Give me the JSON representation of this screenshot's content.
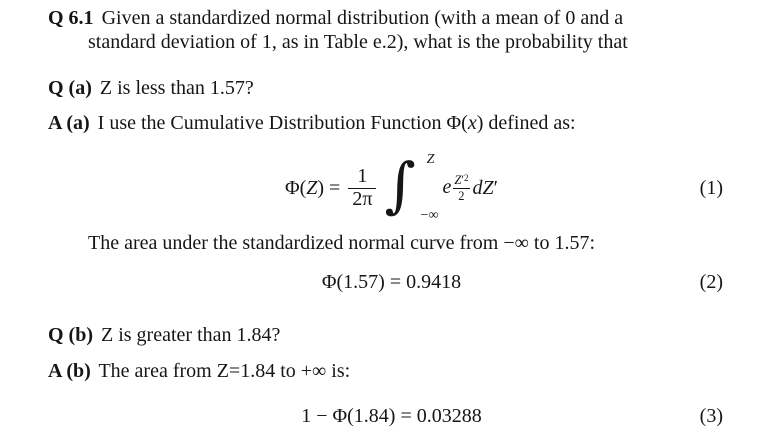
{
  "doc": {
    "background": "#ffffff",
    "ink": "#161616"
  },
  "paragraphs": {
    "q61": {
      "label": "Q 6.1",
      "line1": "Given a standardized normal distribution (with a mean of 0 and a",
      "line2": "standard deviation of 1, as in Table e.2), what is the probability that"
    },
    "qa": {
      "label": "Q (a)",
      "text": "Z is less than 1.57?"
    },
    "aa": {
      "label": "A (a)",
      "before": "I use the Cumulative Distribution Function",
      "phi_open": "Φ(",
      "var": "x",
      "after": ") defined as:"
    },
    "area": {
      "text": "The area under the standardized normal curve from −∞ to 1.57:"
    },
    "qb": {
      "label": "Q (b)",
      "text": "Z is greater than 1.84?"
    },
    "ab": {
      "label": "A (b)",
      "text": "The area from Z=1.84 to +∞ is:"
    }
  },
  "equations": {
    "eq1": {
      "lhs_open": "Φ(",
      "lhs_var": "Z",
      "lhs_close": ") =",
      "frac_num": "1",
      "frac_den": "2π",
      "int_sign": "∫",
      "int_upper": "Z",
      "int_lower": "−∞",
      "e": "e",
      "exp_num_var": "Z",
      "exp_num_prime": "′",
      "exp_num_sup": "2",
      "exp_den": "2",
      "d_var": "dZ",
      "d_prime": "′",
      "tag": "(1)"
    },
    "eq2": {
      "body": "Φ(1.57) = 0.9418",
      "tag": "(2)"
    },
    "eq3": {
      "body": "1 − Φ(1.84) = 0.03288",
      "tag": "(3)"
    }
  }
}
